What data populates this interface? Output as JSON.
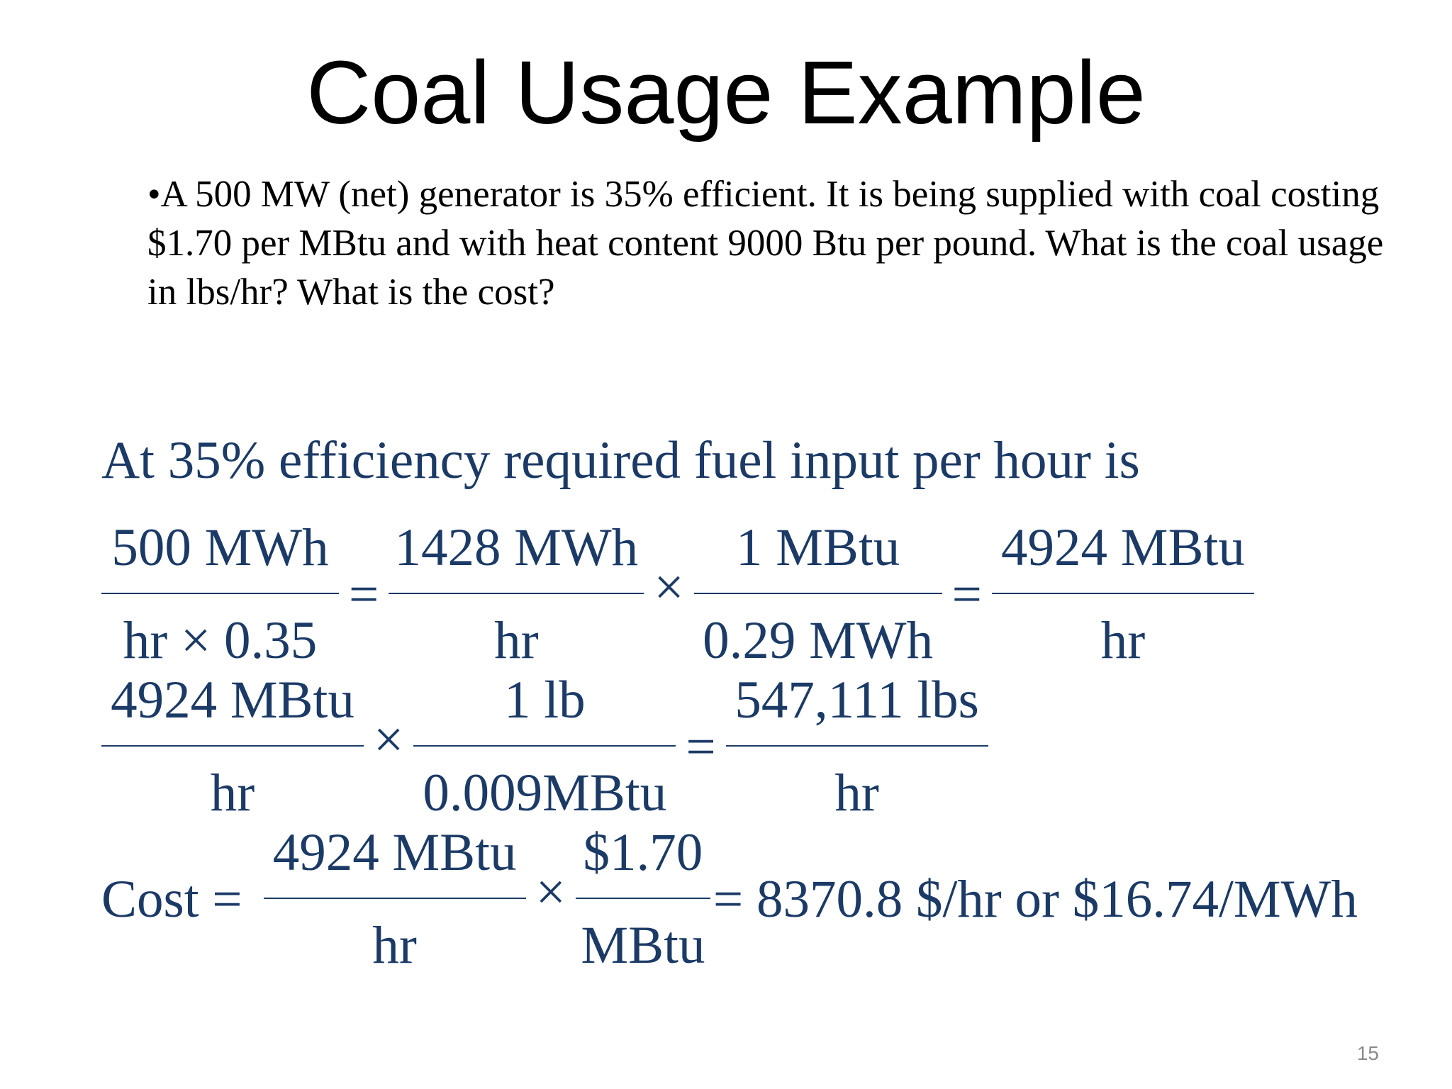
{
  "slide": {
    "title": "Coal Usage Example",
    "problem": "•A 500 MW (net) generator is 35% efficient. It is being supplied with coal costing $1.70 per MBtu and with heat content 9000 Btu per pound.  What is the coal usage in lbs/hr?  What is the cost?",
    "page_number": "15"
  },
  "solution": {
    "intro": "At 35% efficiency required fuel input per hour is",
    "eq1": {
      "f1_num": "500 MWh",
      "f1_den": "hr × 0.35",
      "op1": "=",
      "f2_num": "1428 MWh",
      "f2_den": "hr",
      "op2": "×",
      "f3_num": "1 MBtu",
      "f3_den": "0.29 MWh",
      "op3": "=",
      "f4_num": "4924 MBtu",
      "f4_den": "hr"
    },
    "eq2": {
      "f1_num": "4924 MBtu",
      "f1_den": "hr",
      "op1": "×",
      "f2_num": "1 lb",
      "f2_den": "0.009MBtu",
      "op2": "=",
      "f3_num": "547,111 lbs",
      "f3_den": "hr"
    },
    "eq3": {
      "label": "Cost =",
      "f1_num": "4924 MBtu",
      "f1_den": "hr",
      "op1": "×",
      "f2_num": "$1.70",
      "f2_den": "MBtu",
      "result": "= 8370.8 $/hr or $16.74/MWh"
    },
    "colors": {
      "math": "#1b3a66",
      "body_text": "#000000",
      "page_number": "#8a8a8a"
    }
  }
}
